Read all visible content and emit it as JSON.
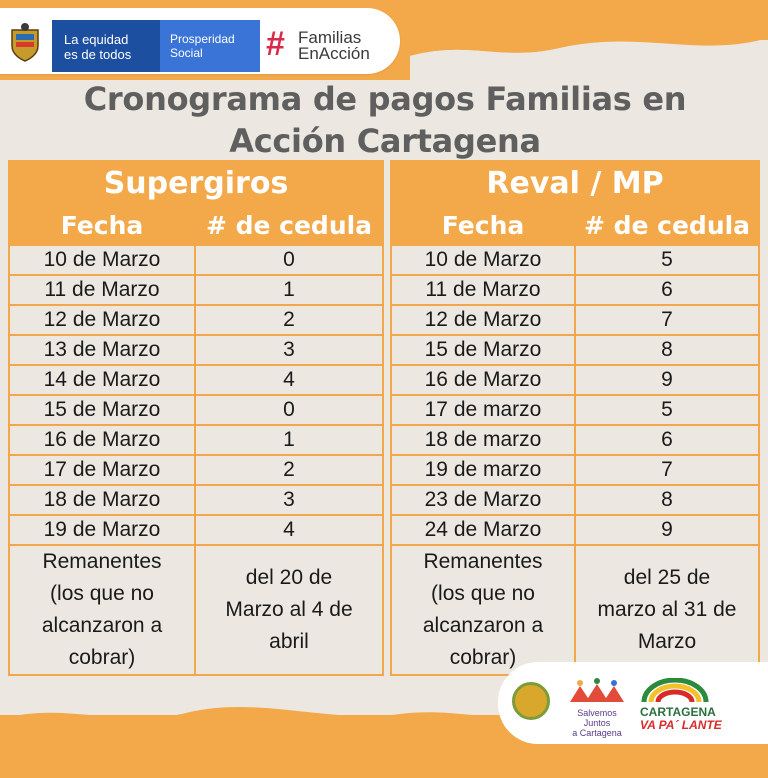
{
  "header": {
    "gov_line1": "La equidad",
    "gov_line2": "es de todos",
    "ps_line1": "Prosperidad",
    "ps_line2": "Social",
    "fa_hash": "#",
    "fa_line1": "Familias",
    "fa_line2": "EnAcción"
  },
  "title_line1": "Cronograma de pagos Familias en",
  "title_line2": "Acción Cartagena",
  "tables": [
    {
      "name": "Supergiros",
      "col1": "Fecha",
      "col2": "# de cedula",
      "rows": [
        [
          "10 de Marzo",
          "0"
        ],
        [
          "11 de Marzo",
          "1"
        ],
        [
          "12 de Marzo",
          "2"
        ],
        [
          "13 de Marzo",
          "3"
        ],
        [
          "14 de Marzo",
          "4"
        ],
        [
          "15 de Marzo",
          "0"
        ],
        [
          "16 de Marzo",
          "1"
        ],
        [
          "17 de Marzo",
          "2"
        ],
        [
          "18 de Marzo",
          "3"
        ],
        [
          "19 de Marzo",
          "4"
        ]
      ],
      "rem_label": [
        "Remanentes",
        "(los que no",
        "alcanzaron a",
        "cobrar)"
      ],
      "rem_value": [
        "del 20 de",
        "Marzo al 4 de",
        "abril"
      ]
    },
    {
      "name": "Reval / MP",
      "col1": "Fecha",
      "col2": "# de cedula",
      "rows": [
        [
          "10 de Marzo",
          "5"
        ],
        [
          "11 de Marzo",
          "6"
        ],
        [
          "12 de Marzo",
          "7"
        ],
        [
          "15 de Marzo",
          "8"
        ],
        [
          "16 de Marzo",
          "9"
        ],
        [
          "17 de marzo",
          "5"
        ],
        [
          "18 de marzo",
          "6"
        ],
        [
          "19 de marzo",
          "7"
        ],
        [
          "23 de Marzo",
          "8"
        ],
        [
          "24 de Marzo",
          "9"
        ]
      ],
      "rem_label": [
        "Remanentes",
        "(los que no",
        "alcanzaron a",
        "cobrar)"
      ],
      "rem_value": [
        "del 25 de",
        "marzo al 31 de",
        "Marzo"
      ]
    }
  ],
  "footer_logos": {
    "salvemos_line1": "Salvemos Juntos",
    "salvemos_line2": "a Cartagena",
    "cartagena_line1": "CARTAGENA",
    "cartagena_line2": "VA PA´ LANTE"
  },
  "colors": {
    "orange": "#f3a94a",
    "paper": "#ece8e1",
    "title": "#5f5f5f"
  }
}
